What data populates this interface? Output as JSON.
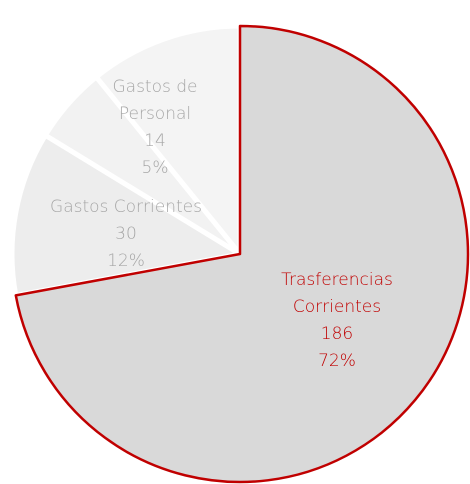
{
  "chart_data": {
    "type": "pie",
    "categories": [
      "Trasferencias Corrientes",
      "Gastos Corrientes",
      "Gastos de Personal",
      null
    ],
    "values": [
      186,
      30,
      14,
      28
    ],
    "percent_labels": [
      "72%",
      "12%",
      "5%",
      null
    ],
    "colors": [
      "#d9d9d9",
      "#ededed",
      "#f2f2f2",
      "#f4f4f4"
    ],
    "label_colors": [
      "#c00000",
      "#a6a6a6",
      "#a6a6a6",
      "#a6a6a6"
    ],
    "edge_colors": [
      "#c00000",
      "#ffffff",
      "#ffffff",
      "#ffffff"
    ]
  }
}
